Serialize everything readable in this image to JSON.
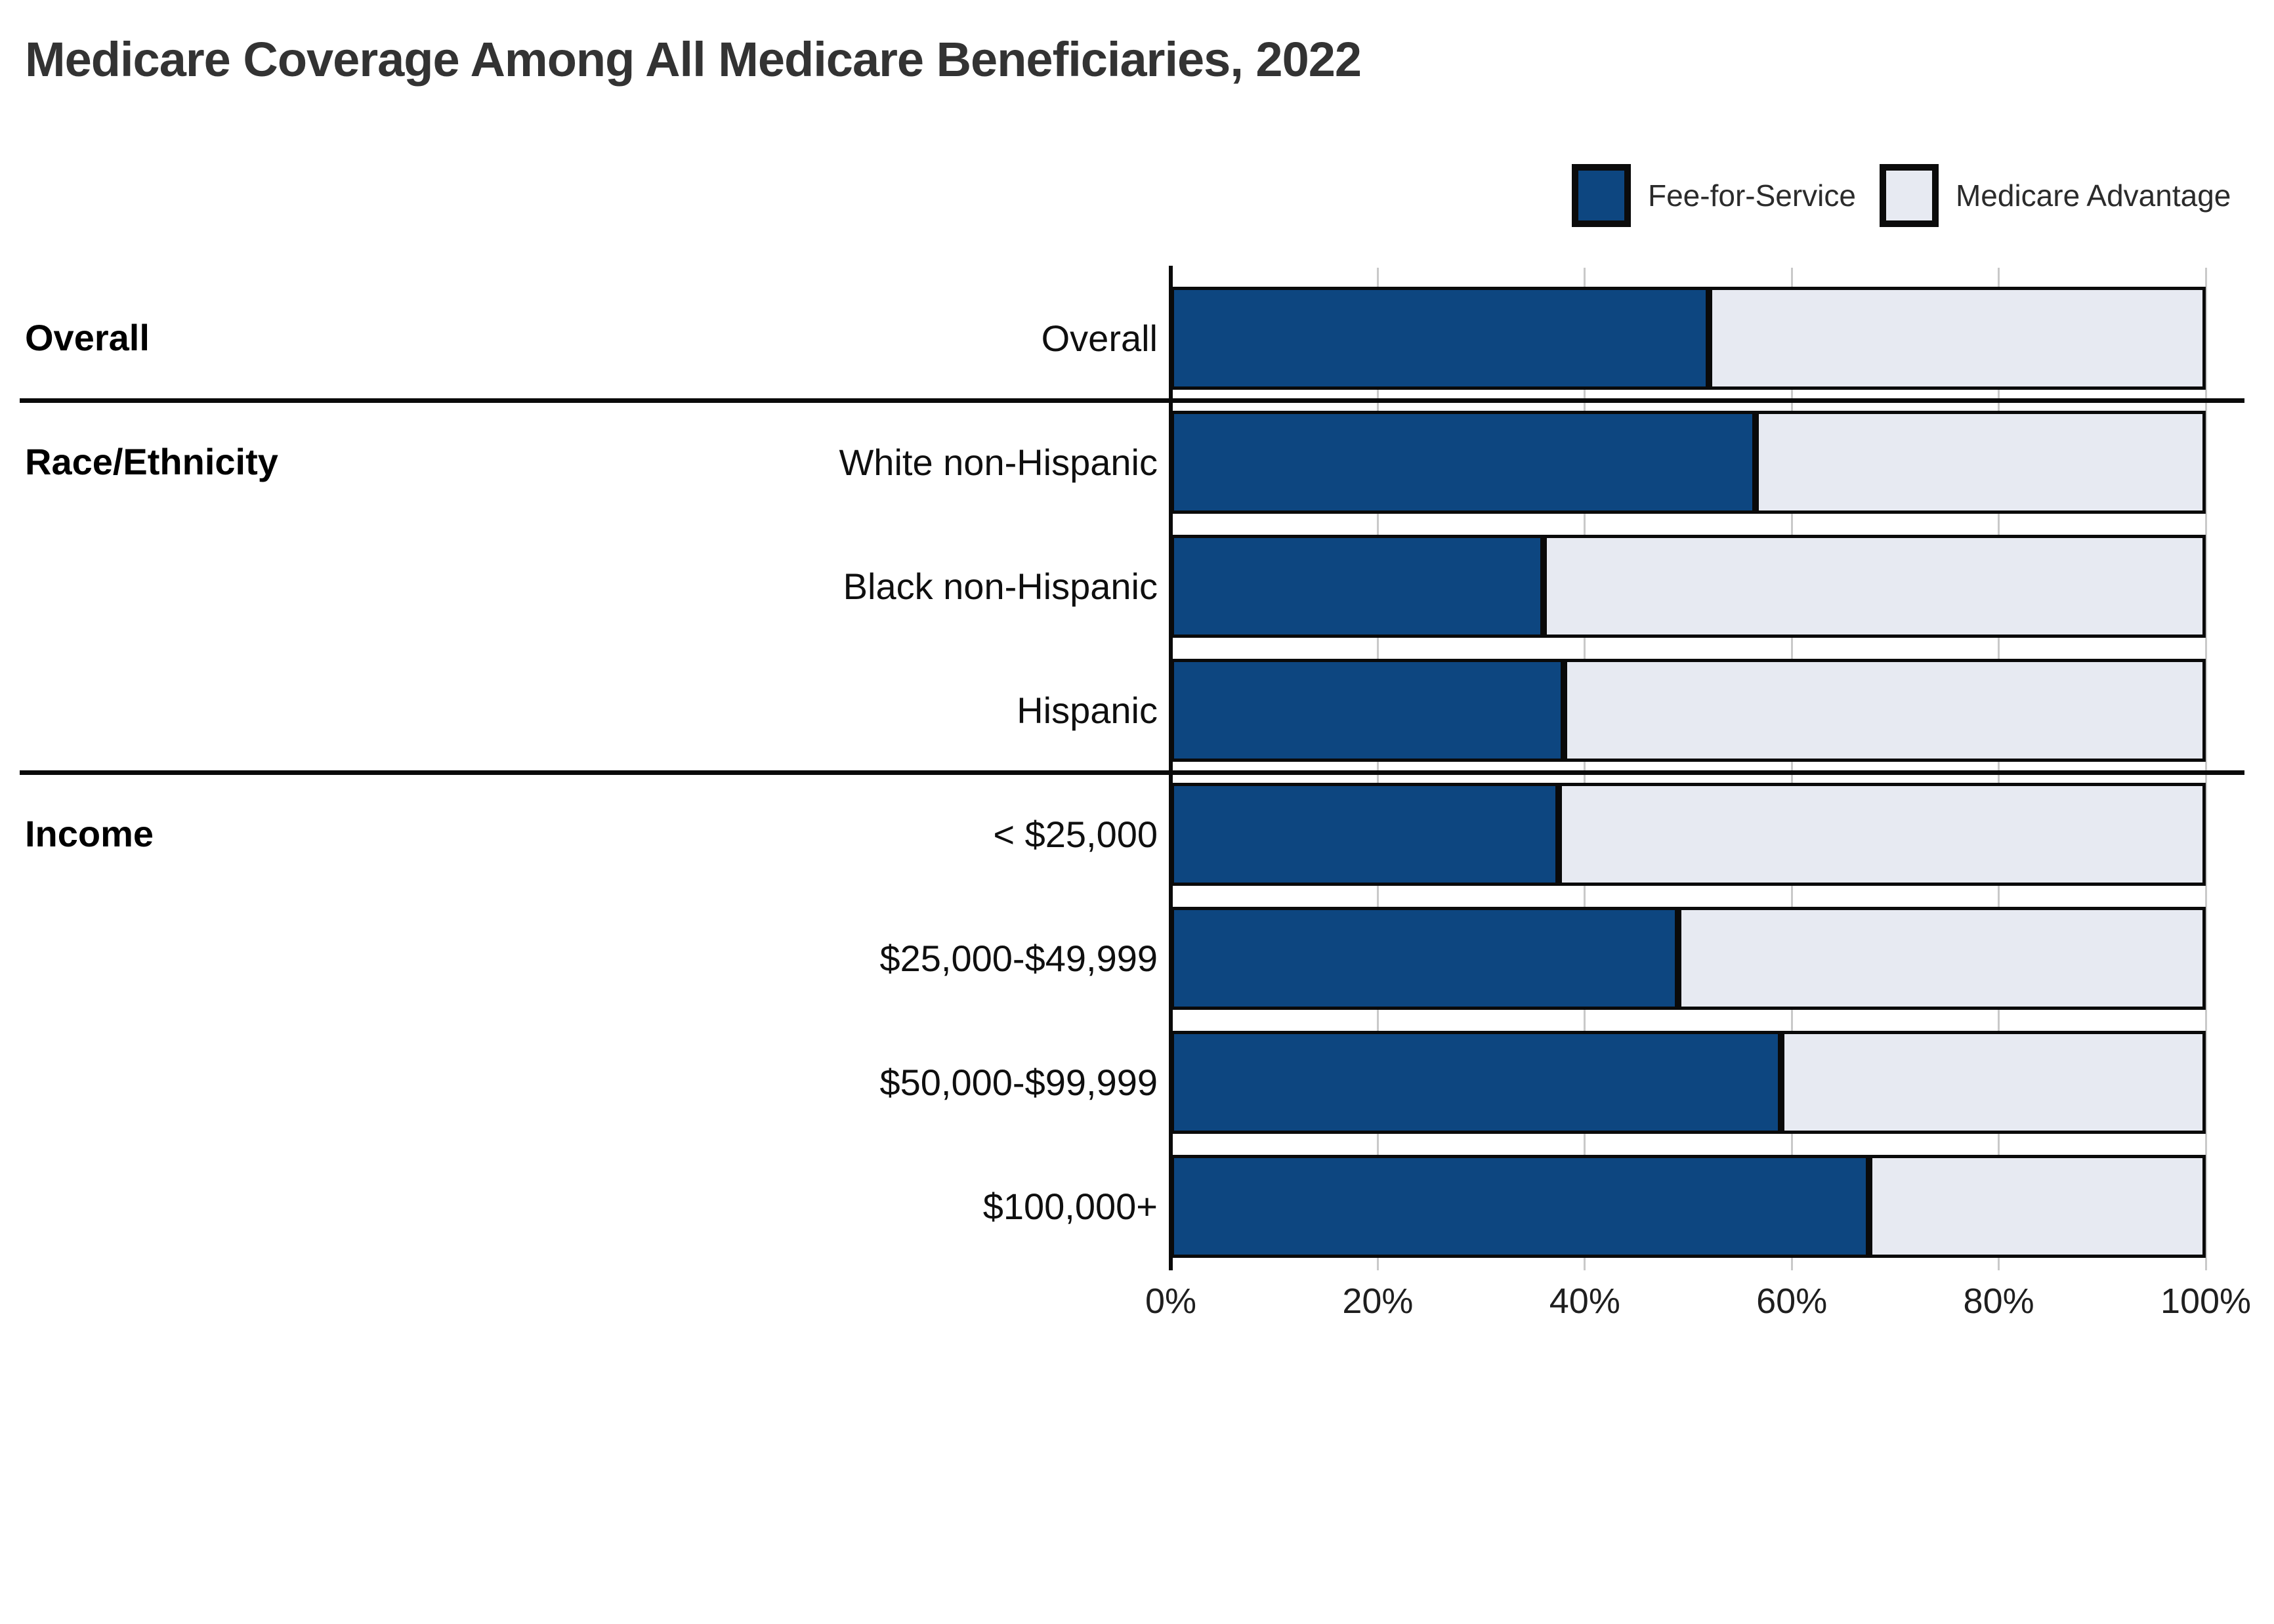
{
  "title": "Medicare Coverage Among All Medicare Beneficiaries, 2022",
  "legend": [
    {
      "label": "Fee-for-Service",
      "color": "#0d4680"
    },
    {
      "label": "Medicare Advantage",
      "color": "#e7eaf2"
    }
  ],
  "chart_data": {
    "type": "bar",
    "stacked": true,
    "orientation": "horizontal",
    "title": "Medicare Coverage Among All Medicare Beneficiaries, 2022",
    "categories": [
      "Overall",
      "White non-Hispanic",
      "Black non-Hispanic",
      "Hispanic",
      "< $25,000",
      "$25,000-$49,999",
      "$50,000-$99,999",
      "$100,000+"
    ],
    "series": [
      {
        "name": "Fee-for-Service",
        "color": "#0d4680",
        "values": [
          52,
          56.5,
          36,
          38,
          37.5,
          49,
          59,
          67.5
        ]
      },
      {
        "name": "Medicare Advantage",
        "color": "#e7eaf2",
        "values": [
          48,
          43.5,
          64,
          62,
          62.5,
          51,
          41,
          32.5
        ]
      }
    ],
    "groups": [
      {
        "label": "Overall",
        "rows": [
          0
        ]
      },
      {
        "label": "Race/Ethnicity",
        "rows": [
          1,
          2,
          3
        ]
      },
      {
        "label": "Income",
        "rows": [
          4,
          5,
          6,
          7
        ]
      }
    ],
    "x_ticks": [
      "0%",
      "20%",
      "40%",
      "60%",
      "80%",
      "100%"
    ],
    "xlim": [
      0,
      100
    ],
    "xlabel": "",
    "ylabel": "",
    "grid": "vertical",
    "legend_position": "top-right",
    "bar_border_color": "#0a0a0a",
    "gridline_color": "#c9c9c9"
  }
}
